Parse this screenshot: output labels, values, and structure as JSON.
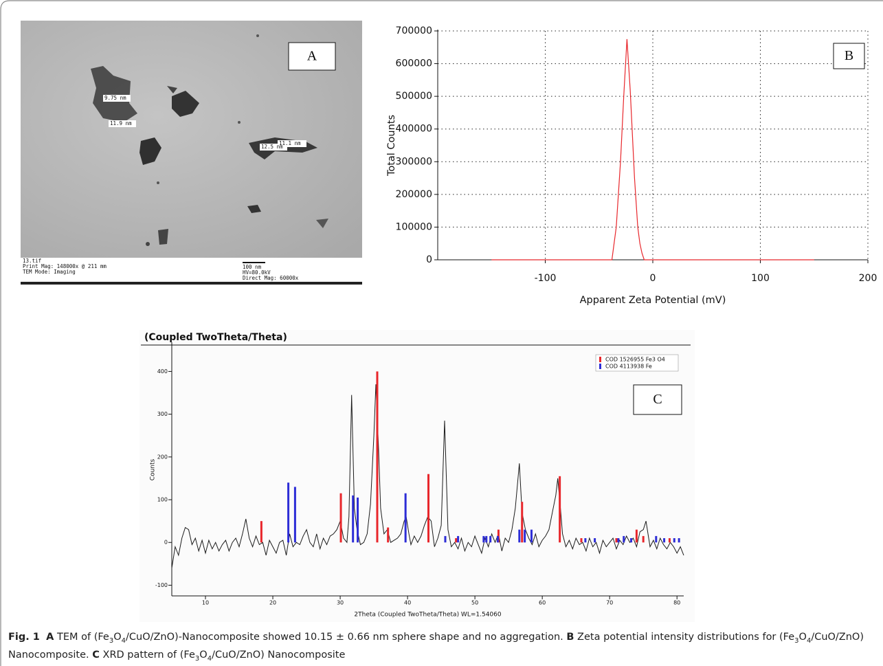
{
  "panel_a": {
    "label": "A",
    "measurements": [
      "9.75 nm",
      "11.9 nm",
      "11.1 nm",
      "12.5 nm"
    ],
    "footer_left": [
      "13.tif",
      "Print Mag: 148000x @ 211 mm",
      "TEM Mode: Imaging"
    ],
    "scale_bar": "100 nm",
    "footer_right": [
      "HV=80.0kV",
      "Direct Mag: 60000x"
    ]
  },
  "chart_data": [
    {
      "type": "line",
      "panel_label": "B",
      "x_label": "Apparent Zeta Potential (mV)",
      "y_label": "Total Counts",
      "x": [
        -150,
        -38,
        -34,
        -30,
        -27,
        -24,
        -21,
        -17,
        -14,
        -12,
        -10,
        -8,
        150
      ],
      "values": [
        0,
        0,
        100000,
        300000,
        500000,
        675000,
        520000,
        250000,
        100000,
        50000,
        20000,
        0,
        0
      ],
      "color": "#e8262b",
      "xlim": [
        -200,
        200
      ],
      "xticks": [
        -100,
        0,
        100,
        200
      ],
      "ylim": [
        0,
        700000
      ],
      "yticks": [
        0,
        100000,
        200000,
        300000,
        400000,
        500000,
        600000,
        700000
      ],
      "grid": true
    },
    {
      "type": "line",
      "panel_label": "C",
      "title": "(Coupled TwoTheta/Theta)",
      "x_label": "2Theta (Coupled TwoTheta/Theta) WL=1.54060",
      "y_label": "Counts",
      "xlim": [
        5,
        81
      ],
      "xticks": [
        10,
        20,
        30,
        40,
        50,
        60,
        70,
        80
      ],
      "ylim": [
        -125,
        465
      ],
      "yticks": [
        -100,
        0,
        100,
        200,
        300,
        400
      ],
      "legend": "upper right",
      "series": [
        {
          "type": "line",
          "color": "#1a1a1a",
          "x": [
            5,
            5.5,
            6,
            6.5,
            7,
            7.5,
            8,
            8.5,
            9,
            9.5,
            10,
            10.5,
            11,
            11.5,
            12,
            12.5,
            13,
            13.5,
            14,
            14.5,
            15,
            15.5,
            16,
            16.5,
            17,
            17.5,
            18,
            18.5,
            19,
            19.5,
            20,
            20.5,
            21,
            21.5,
            22,
            22.5,
            23,
            23.5,
            24,
            24.5,
            25,
            25.5,
            26,
            26.5,
            27,
            27.5,
            28,
            28.5,
            29,
            29.5,
            30,
            30.5,
            31,
            31.3,
            31.7,
            32.1,
            32.5,
            33,
            33.5,
            34,
            34.5,
            35,
            35.3,
            35.7,
            36,
            36.5,
            37,
            37.5,
            38,
            38.5,
            39,
            39.5,
            39.8,
            40.2,
            40.5,
            41,
            41.5,
            42,
            42.5,
            43,
            43.5,
            44,
            44.5,
            45,
            45.5,
            46,
            46.5,
            47,
            47.5,
            48,
            48.5,
            49,
            49.5,
            50,
            50.5,
            51,
            51.5,
            52,
            52.5,
            53,
            53.5,
            54,
            54.5,
            55,
            55.5,
            56,
            56.6,
            57,
            57.5,
            58,
            58.5,
            59,
            59.5,
            60,
            60.5,
            61,
            61.5,
            62,
            62.3,
            62.7,
            63,
            63.5,
            64,
            64.5,
            65,
            65.5,
            66,
            66.5,
            67,
            67.5,
            68,
            68.5,
            69,
            69.5,
            70,
            70.5,
            71,
            71.5,
            72,
            72.5,
            73,
            73.5,
            74,
            74.5,
            75,
            75.4,
            75.8,
            76,
            76.5,
            77,
            77.5,
            78,
            78.5,
            79,
            79.5,
            80,
            80.5,
            81
          ],
          "values": [
            -60,
            -10,
            -30,
            10,
            35,
            30,
            -5,
            10,
            -20,
            5,
            -25,
            5,
            -15,
            0,
            -20,
            -5,
            5,
            -20,
            0,
            10,
            -10,
            20,
            55,
            10,
            -10,
            15,
            -5,
            0,
            -30,
            5,
            -10,
            -25,
            0,
            5,
            -30,
            20,
            -10,
            0,
            -5,
            15,
            30,
            0,
            -10,
            20,
            -15,
            10,
            -5,
            15,
            20,
            30,
            50,
            10,
            0,
            60,
            345,
            80,
            30,
            -5,
            0,
            20,
            90,
            250,
            370,
            220,
            80,
            20,
            30,
            0,
            5,
            10,
            20,
            50,
            60,
            20,
            -5,
            15,
            0,
            15,
            40,
            60,
            50,
            -10,
            10,
            40,
            285,
            30,
            -10,
            0,
            -15,
            10,
            -20,
            0,
            -10,
            15,
            -5,
            -25,
            10,
            -10,
            20,
            0,
            20,
            -20,
            10,
            0,
            30,
            80,
            185,
            70,
            30,
            10,
            -5,
            20,
            -10,
            5,
            15,
            30,
            70,
            110,
            150,
            80,
            20,
            -10,
            5,
            -15,
            10,
            -5,
            0,
            -20,
            10,
            -10,
            0,
            -25,
            5,
            -10,
            0,
            10,
            -15,
            5,
            -5,
            15,
            0,
            10,
            -10,
            25,
            30,
            50,
            10,
            -10,
            5,
            -15,
            10,
            -5,
            -15,
            0,
            -10,
            -25,
            -10,
            -30
          ]
        },
        {
          "type": "stem",
          "name": "COD 1526955 Fe3 O4",
          "color": "#e8262b",
          "x": [
            18.3,
            30.1,
            35.5,
            37.1,
            43.1,
            47.2,
            53.5,
            57.0,
            62.6,
            65.8,
            71.0,
            74.0,
            75.0,
            78.9
          ],
          "values": [
            50,
            115,
            400,
            35,
            160,
            10,
            30,
            95,
            155,
            10,
            10,
            30,
            15,
            10
          ]
        },
        {
          "type": "stem",
          "name": "COD 4113938 Fe",
          "color": "#2d2dd6",
          "x": [
            22.3,
            23.3,
            31.9,
            32.6,
            39.7,
            45.6,
            47.5,
            51.3,
            51.7,
            52.3,
            53.4,
            56.6,
            57.4,
            58.4,
            66.4,
            67.8,
            71.3,
            72.1,
            73.2,
            76.9,
            78.1,
            79.6,
            80.3
          ],
          "values": [
            140,
            130,
            110,
            105,
            115,
            15,
            15,
            15,
            15,
            15,
            15,
            30,
            30,
            30,
            10,
            10,
            10,
            15,
            10,
            15,
            10,
            10,
            10
          ]
        }
      ]
    }
  ],
  "caption": {
    "runs": [
      "Fig. 1",
      "A",
      "TEM of (Fe",
      "3",
      "O",
      "4",
      "/CuO/ZnO)-Nanocomposite showed 10.15 ± 0.66 nm sphere shape and no aggregation.",
      "B",
      "Zeta potential intensity distributions for (Fe",
      "3",
      "O",
      "4",
      "/CuO/ZnO) Nanocomposite.",
      "C",
      "XRD pattern of (Fe",
      "3",
      "O",
      "4",
      "/CuO/ZnO) Nanocomposite"
    ]
  }
}
